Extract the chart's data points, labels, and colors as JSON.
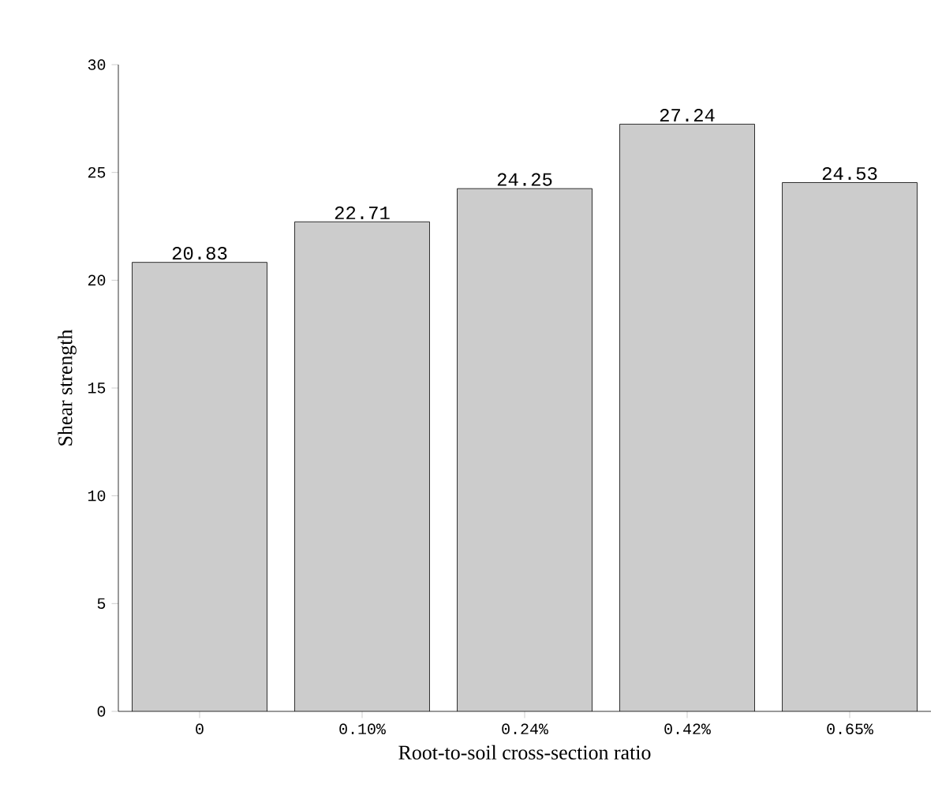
{
  "chart_data": {
    "type": "bar",
    "xlabel": "Root-to-soil cross-section ratio",
    "ylabel": "Shear strength",
    "categories": [
      "0",
      "0.10%",
      "0.24%",
      "0.42%",
      "0.65%"
    ],
    "values": [
      20.83,
      22.71,
      24.25,
      27.24,
      24.53
    ],
    "color": "#cccccc",
    "ylim": [
      0,
      30
    ],
    "yticks": [
      0,
      5,
      10,
      15,
      20,
      25,
      30
    ],
    "data_labels": true
  }
}
